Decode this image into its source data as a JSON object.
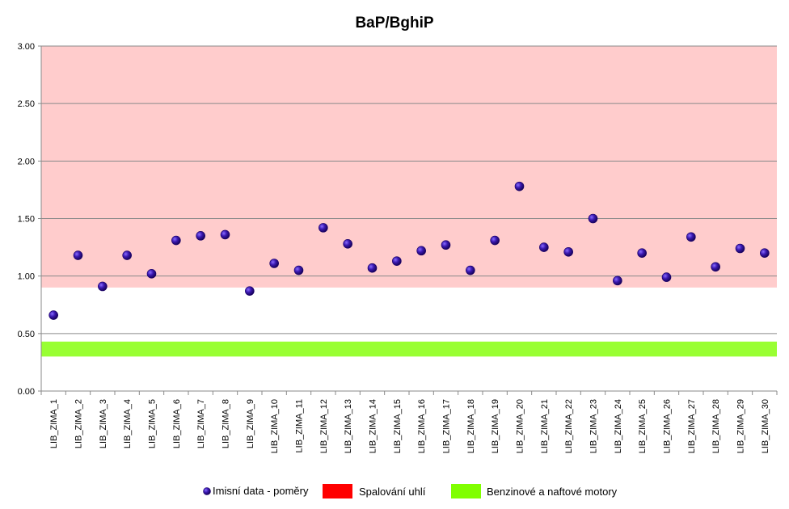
{
  "chart_data": {
    "type": "scatter",
    "title": "BaP/BghiP",
    "xlabel": "",
    "ylabel": "",
    "ylim": [
      0,
      3
    ],
    "y_ticks": [
      "0.00",
      "0.50",
      "1.00",
      "1.50",
      "2.00",
      "2.50",
      "3.00"
    ],
    "grid": true,
    "legend_position": "bottom",
    "categories": [
      "LIB_ZIMA_1",
      "LIB_ZIMA_2",
      "LIB_ZIMA_3",
      "LIB_ZIMA_4",
      "LIB_ZIMA_5",
      "LIB_ZIMA_6",
      "LIB_ZIMA_7",
      "LIB_ZIMA_8",
      "LIB_ZIMA_9",
      "LIB_ZIMA_10",
      "LIB_ZIMA_11",
      "LIB_ZIMA_12",
      "LIB_ZIMA_13",
      "LIB_ZIMA_14",
      "LIB_ZIMA_15",
      "LIB_ZIMA_16",
      "LIB_ZIMA_17",
      "LIB_ZIMA_18",
      "LIB_ZIMA_19",
      "LIB_ZIMA_20",
      "LIB_ZIMA_21",
      "LIB_ZIMA_22",
      "LIB_ZIMA_23",
      "LIB_ZIMA_24",
      "LIB_ZIMA_25",
      "LIB_ZIMA_26",
      "LIB_ZIMA_27",
      "LIB_ZIMA_28",
      "LIB_ZIMA_29",
      "LIB_ZIMA_30"
    ],
    "series": [
      {
        "name": "Imisní data  - poměry",
        "color": "#2a0a8c",
        "values": [
          0.66,
          1.18,
          0.91,
          1.18,
          1.02,
          1.31,
          1.35,
          1.36,
          0.87,
          1.11,
          1.05,
          1.42,
          1.28,
          1.07,
          1.13,
          1.22,
          1.27,
          1.05,
          1.31,
          1.78,
          1.25,
          1.21,
          1.5,
          0.96,
          1.2,
          0.99,
          1.34,
          1.08,
          1.24,
          1.2
        ]
      }
    ],
    "bands": [
      {
        "name": "Spalování uhlí",
        "color": "#ff0000",
        "fill": "#ffcccc",
        "range": [
          0.9,
          3.0
        ]
      },
      {
        "name": "Benzinové a naftové motory",
        "color": "#80ff00",
        "fill": "#99ff33",
        "range": [
          0.3,
          0.43
        ]
      }
    ]
  }
}
